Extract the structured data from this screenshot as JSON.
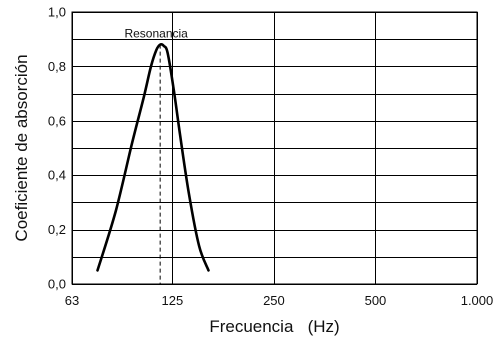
{
  "chart_data": {
    "type": "line",
    "xlabel": "Frecuencia   (Hz)",
    "ylabel": "Coeficiente de absorción",
    "x_tick_labels": [
      "63",
      "125",
      "250",
      "500",
      "1.000"
    ],
    "x_tick_values": [
      63,
      125,
      250,
      500,
      1000
    ],
    "x_scale": "log2",
    "xlim": [
      63,
      1000
    ],
    "y_tick_labels": [
      "0,0",
      "0,2",
      "0,4",
      "0,6",
      "0,8",
      "1,0"
    ],
    "y_tick_values": [
      0,
      0.2,
      0.4,
      0.6,
      0.8,
      1.0
    ],
    "ylim": [
      0,
      1.0
    ],
    "y_minor_grid": [
      0.1,
      0.3,
      0.5,
      0.7,
      0.9
    ],
    "grid": true,
    "series": [
      {
        "x": [
          75,
          85,
          95,
          103,
          108,
          112,
          115,
          118,
          121,
          126,
          132,
          140,
          150,
          160
        ],
        "y": [
          0.05,
          0.27,
          0.52,
          0.69,
          0.8,
          0.86,
          0.88,
          0.875,
          0.85,
          0.72,
          0.54,
          0.33,
          0.14,
          0.05
        ]
      }
    ],
    "annotations": [
      {
        "text": "Resonancia",
        "x": 115,
        "y": 0.88,
        "dashed_line_to_axis": true
      }
    ]
  }
}
